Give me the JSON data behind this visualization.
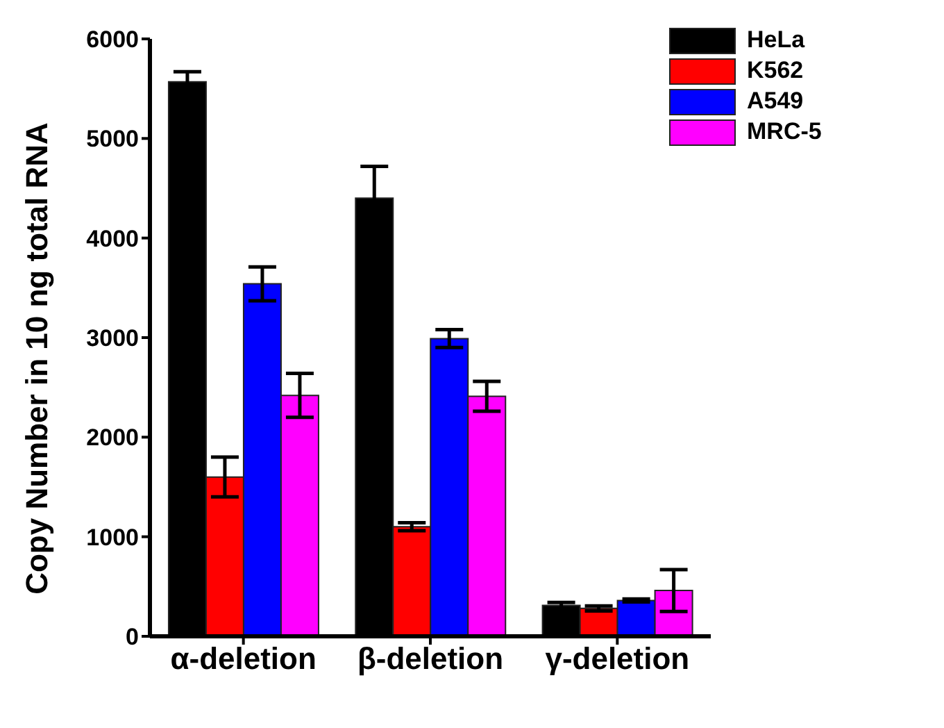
{
  "chart_data": {
    "type": "bar",
    "ylabel": "Copy Number in 10 ng total RNA",
    "categories": [
      "α-deletion",
      "β-deletion",
      "γ-deletion"
    ],
    "series": [
      {
        "name": "HeLa",
        "color": "#000000",
        "values": [
          5570,
          4400,
          310
        ],
        "errors": [
          100,
          320,
          30
        ]
      },
      {
        "name": "K562",
        "color": "#ff0000",
        "values": [
          1600,
          1100,
          280
        ],
        "errors": [
          200,
          40,
          25
        ]
      },
      {
        "name": "A549",
        "color": "#0000ff",
        "values": [
          3540,
          2990,
          360
        ],
        "errors": [
          170,
          90,
          15
        ]
      },
      {
        "name": "MRC-5",
        "color": "#ff00ff",
        "values": [
          2420,
          2410,
          460
        ],
        "errors": [
          220,
          150,
          210
        ]
      }
    ],
    "ylim": [
      0,
      6000
    ],
    "yticks": [
      0,
      1000,
      2000,
      3000,
      4000,
      5000,
      6000
    ],
    "grid": false,
    "legend": "top right"
  }
}
